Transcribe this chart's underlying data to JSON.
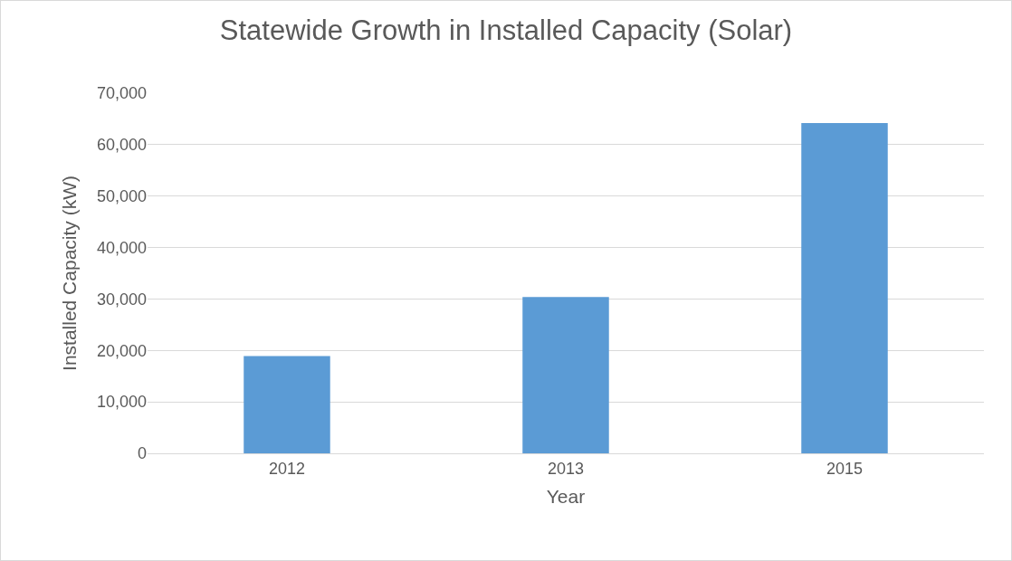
{
  "chart_data": {
    "type": "bar",
    "title": "Statewide Growth in Installed Capacity (Solar)",
    "xlabel": "Year",
    "ylabel": "Installed Capacity (kW)",
    "categories": [
      "2012",
      "2013",
      "2015"
    ],
    "values": [
      18900,
      30400,
      64200
    ],
    "color": "#5b9bd5",
    "ylim": [
      0,
      70000
    ],
    "yticks": [
      {
        "value": 0,
        "label": "0"
      },
      {
        "value": 10000,
        "label": "10,000"
      },
      {
        "value": 20000,
        "label": "20,000"
      },
      {
        "value": 30000,
        "label": "30,000"
      },
      {
        "value": 40000,
        "label": "40,000"
      },
      {
        "value": 50000,
        "label": "50,000"
      },
      {
        "value": 60000,
        "label": "60,000"
      },
      {
        "value": 70000,
        "label": "70,000"
      }
    ],
    "grid": "y",
    "legend": false
  }
}
